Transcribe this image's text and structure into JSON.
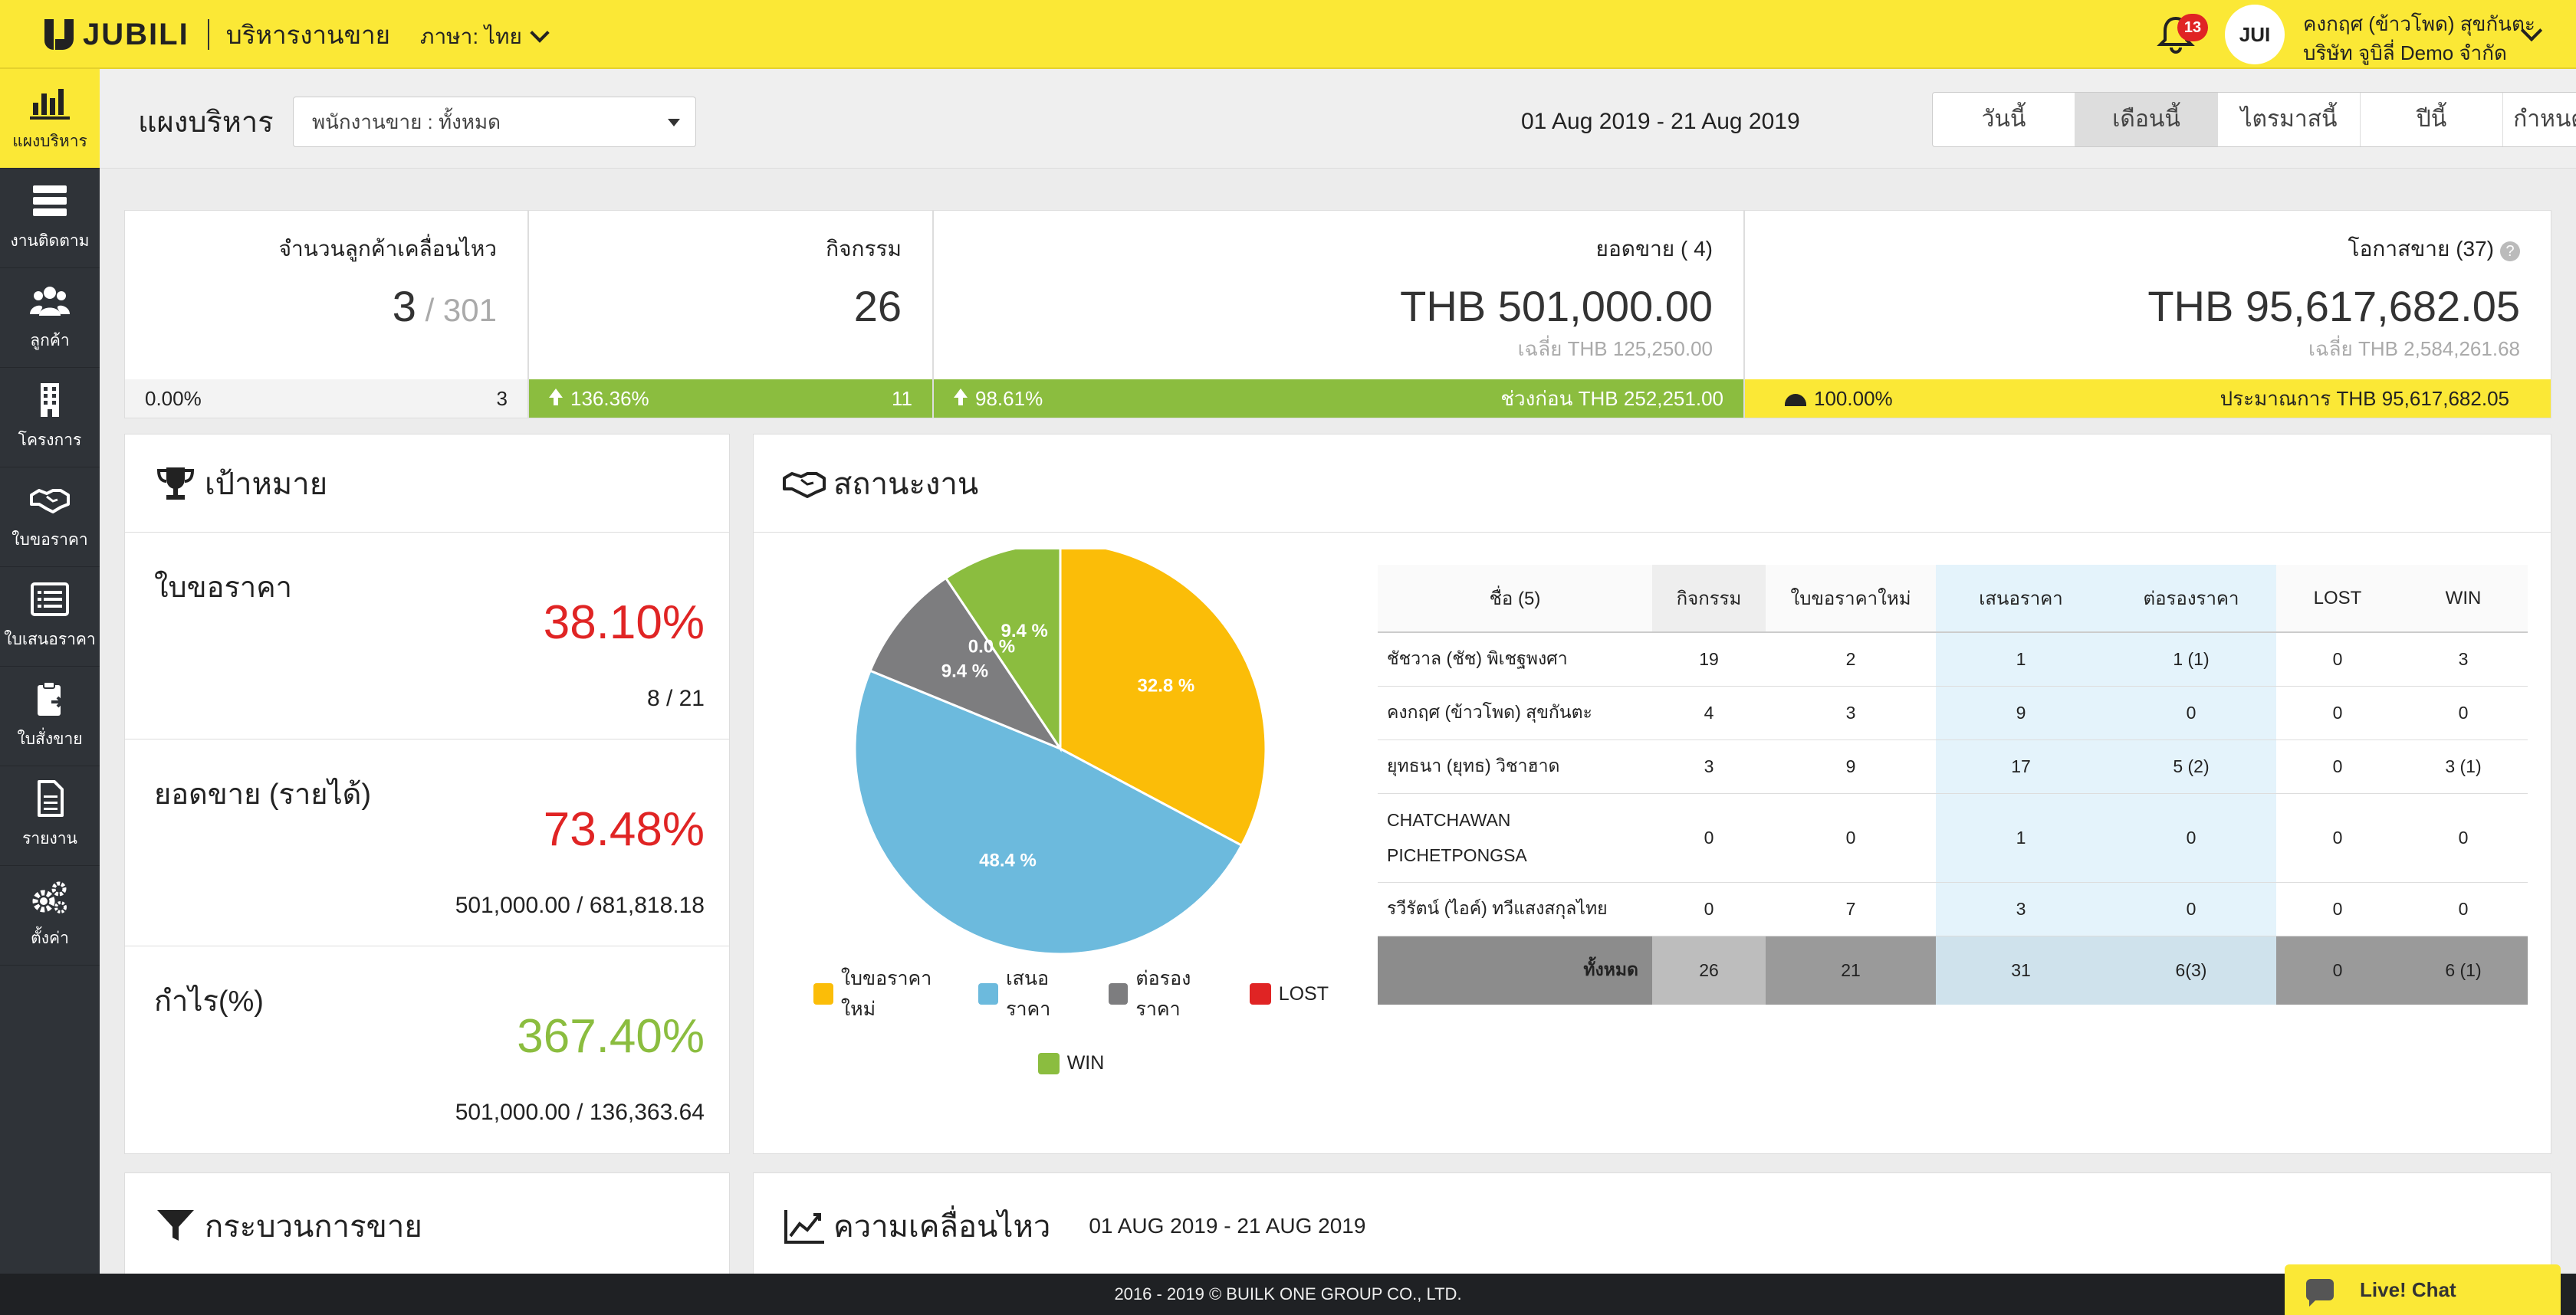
{
  "header": {
    "logo_text": "JUBILI",
    "app_name": "บริหารงานขาย",
    "language": "ภาษา: ไทย",
    "notifications": "13",
    "avatar_text": "JUI",
    "user_name": "คงกฤศ (ข้าวโพด) สุขกันตะ",
    "company": "บริษัท จูบิลี่ Demo จำกัด"
  },
  "sidebar": {
    "items": [
      {
        "label": "แผงบริหาร",
        "icon": "bar-chart-icon"
      },
      {
        "label": "งานติดตาม",
        "icon": "tasks-icon"
      },
      {
        "label": "ลูกค้า",
        "icon": "users-icon"
      },
      {
        "label": "โครงการ",
        "icon": "building-icon"
      },
      {
        "label": "ใบขอราคา",
        "icon": "handshake-icon"
      },
      {
        "label": "ใบเสนอราคา",
        "icon": "list-icon"
      },
      {
        "label": "ใบสั่งขาย",
        "icon": "clipboard-icon"
      },
      {
        "label": "รายงาน",
        "icon": "document-icon"
      },
      {
        "label": "ตั้งค่า",
        "icon": "gears-icon"
      }
    ]
  },
  "subheader": {
    "title": "แผงบริหาร",
    "salesman_filter": "พนักงานขาย : ทั้งหมด",
    "date_range": "01 Aug 2019 - 21 Aug 2019",
    "periods": [
      "วันนี้",
      "เดือนนี้",
      "ไตรมาสนี้",
      "ปีนี้",
      "กำหนดเอง"
    ],
    "active_period": "เดือนนี้"
  },
  "stats": {
    "customers": {
      "label": "จำนวนลูกค้าเคลื่อนไหว",
      "value": "3",
      "total": " / 301",
      "foot_left": "0.00%",
      "foot_right": "3"
    },
    "activities": {
      "label": "กิจกรรม",
      "value": "26",
      "foot_left": "136.36%",
      "foot_right": "11"
    },
    "sales": {
      "label": "ยอดขาย ( 4)",
      "value": "THB 501,000.00",
      "avg": "เฉลี่ย THB 125,250.00",
      "foot_left": "98.61%",
      "foot_right": "ช่วงก่อน THB 252,251.00"
    },
    "opportunities": {
      "label": "โอกาสขาย (37)",
      "value": "THB 95,617,682.05",
      "avg": "เฉลี่ย THB 2,584,261.68",
      "foot_left": "100.00%",
      "foot_right": "ประมาณการ THB 95,617,682.05"
    }
  },
  "targets": {
    "title": "เป้าหมาย",
    "items": [
      {
        "label": "ใบขอราคา",
        "percent": "38.10%",
        "ratio": "8 / 21"
      },
      {
        "label": "ยอดขาย (รายได้)",
        "percent": "73.48%",
        "ratio": "501,000.00 / 681,818.18"
      },
      {
        "label": "กำไร(%)",
        "percent": "367.40%",
        "ratio": "501,000.00 / 136,363.64"
      }
    ]
  },
  "status": {
    "title": "สถานะงาน",
    "columns": [
      "ชื่อ (5)",
      "กิจกรรม",
      "ใบขอราคาใหม่",
      "เสนอราคา",
      "ต่อรองราคา",
      "LOST",
      "WIN"
    ],
    "rows": [
      [
        "ชัชวาล (ชัช) พิเชฐพงศา",
        "19",
        "2",
        "1",
        "1 (1)",
        "0",
        "3"
      ],
      [
        "คงกฤศ (ข้าวโพด) สุขกันตะ",
        "4",
        "3",
        "9",
        "0",
        "0",
        "0"
      ],
      [
        "ยุทธนา (ยุทธ) วิชาฮาด",
        "3",
        "9",
        "17",
        "5 (2)",
        "0",
        "3 (1)"
      ],
      [
        "CHATCHAWAN PICHETPONGSA",
        "0",
        "0",
        "1",
        "0",
        "0",
        "0"
      ],
      [
        "รวีรัตน์ (ไอค์) ทวีแสงสกุลไทย",
        "0",
        "7",
        "3",
        "0",
        "0",
        "0"
      ]
    ],
    "total": [
      "ทั้งหมด",
      "26",
      "21",
      "31",
      "6(3)",
      "0",
      "6 (1)"
    ]
  },
  "chart_data": {
    "type": "pie",
    "categories": [
      "ใบขอราคาใหม่",
      "เสนอราคา",
      "ต่อรองราคา",
      "LOST",
      "WIN"
    ],
    "values": [
      32.8,
      48.4,
      9.4,
      0.0,
      9.4
    ],
    "labels": [
      "32.8 %",
      "48.4 %",
      "9.4 %",
      "0.0 %",
      "9.4 %"
    ],
    "colors": [
      "#fbbd08",
      "#6cbadd",
      "#7d7d7f",
      "#e02424",
      "#8bbd3f"
    ],
    "legend": "bottom"
  },
  "sales_process": {
    "title": "กระบวนการขาย"
  },
  "movement": {
    "title": "ความเคลื่อนไหว",
    "date_range": "01 AUG 2019 - 21 AUG 2019"
  },
  "footer": {
    "copyright": "2016 - 2019 © BUILK ONE GROUP CO., LTD.",
    "chat_label": "Live! Chat"
  }
}
